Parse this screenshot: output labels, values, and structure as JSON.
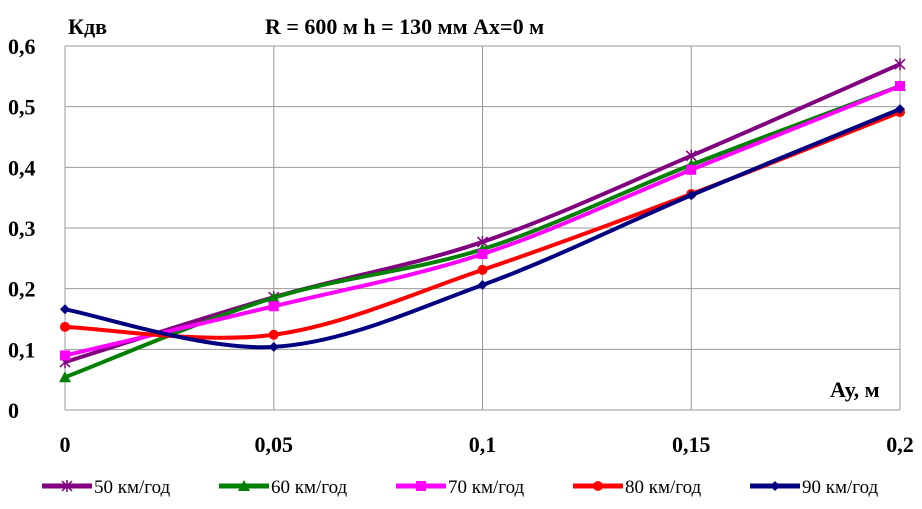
{
  "chart_data": {
    "type": "line",
    "title": "R = 600 м  h = 130 мм Ах=0 м",
    "ylabel": "Кдв",
    "xlabel": "Ау, м",
    "x": [
      0,
      0.05,
      0.1,
      0.15,
      0.2
    ],
    "xticks": [
      "0",
      "0,05",
      "0,1",
      "0,15",
      "0,2"
    ],
    "yticks": [
      "0",
      "0,1",
      "0,2",
      "0,3",
      "0,4",
      "0,5",
      "0,6"
    ],
    "xlim": [
      0,
      0.2
    ],
    "ylim": [
      0,
      0.6
    ],
    "grid": true,
    "legend_position": "bottom",
    "series": [
      {
        "name": "50 км/год",
        "color": "#800080",
        "marker": "star",
        "values": [
          0.079,
          0.186,
          0.277,
          0.419,
          0.57
        ]
      },
      {
        "name": "60 км/год",
        "color": "#008000",
        "marker": "triangle",
        "values": [
          0.054,
          0.185,
          0.265,
          0.404,
          0.534
        ]
      },
      {
        "name": "70 км/год",
        "color": "#FF00FF",
        "marker": "square",
        "values": [
          0.09,
          0.171,
          0.257,
          0.396,
          0.534
        ]
      },
      {
        "name": "80 км/год",
        "color": "#FF0000",
        "marker": "circle",
        "values": [
          0.137,
          0.124,
          0.231,
          0.356,
          0.491
        ]
      },
      {
        "name": "90 км/год",
        "color": "#000080",
        "marker": "diamond",
        "values": [
          0.166,
          0.104,
          0.206,
          0.354,
          0.496
        ]
      }
    ]
  }
}
